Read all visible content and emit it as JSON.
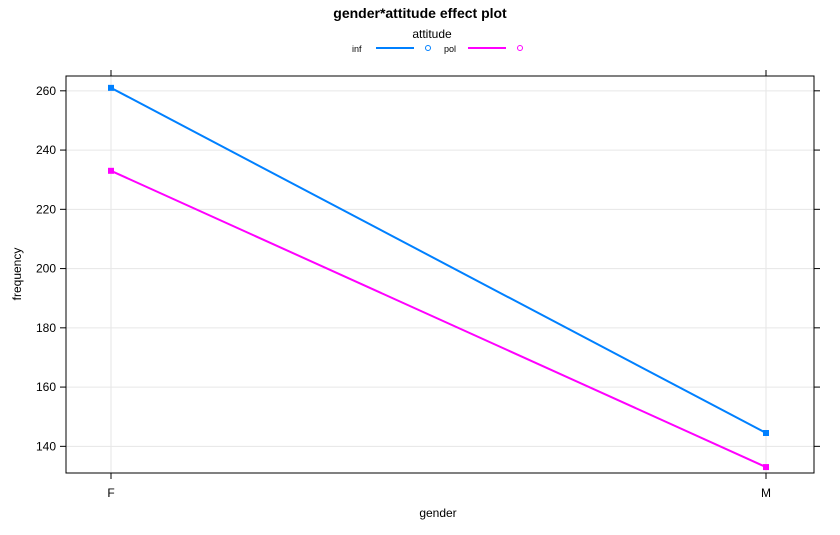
{
  "chart_data": {
    "type": "line",
    "title": "gender*attitude effect plot",
    "xlabel": "gender",
    "ylabel": "frequency",
    "categories": [
      "F",
      "M"
    ],
    "ylim": [
      131,
      265
    ],
    "yticks": [
      140,
      160,
      180,
      200,
      220,
      240,
      260
    ],
    "grid": true,
    "legend": {
      "title": "attitude",
      "placement": "top"
    },
    "series": [
      {
        "name": "inf",
        "values": [
          261,
          144.5
        ],
        "color": "#0080ff"
      },
      {
        "name": "pol",
        "values": [
          233,
          133
        ],
        "color": "#ff00ff"
      }
    ]
  }
}
